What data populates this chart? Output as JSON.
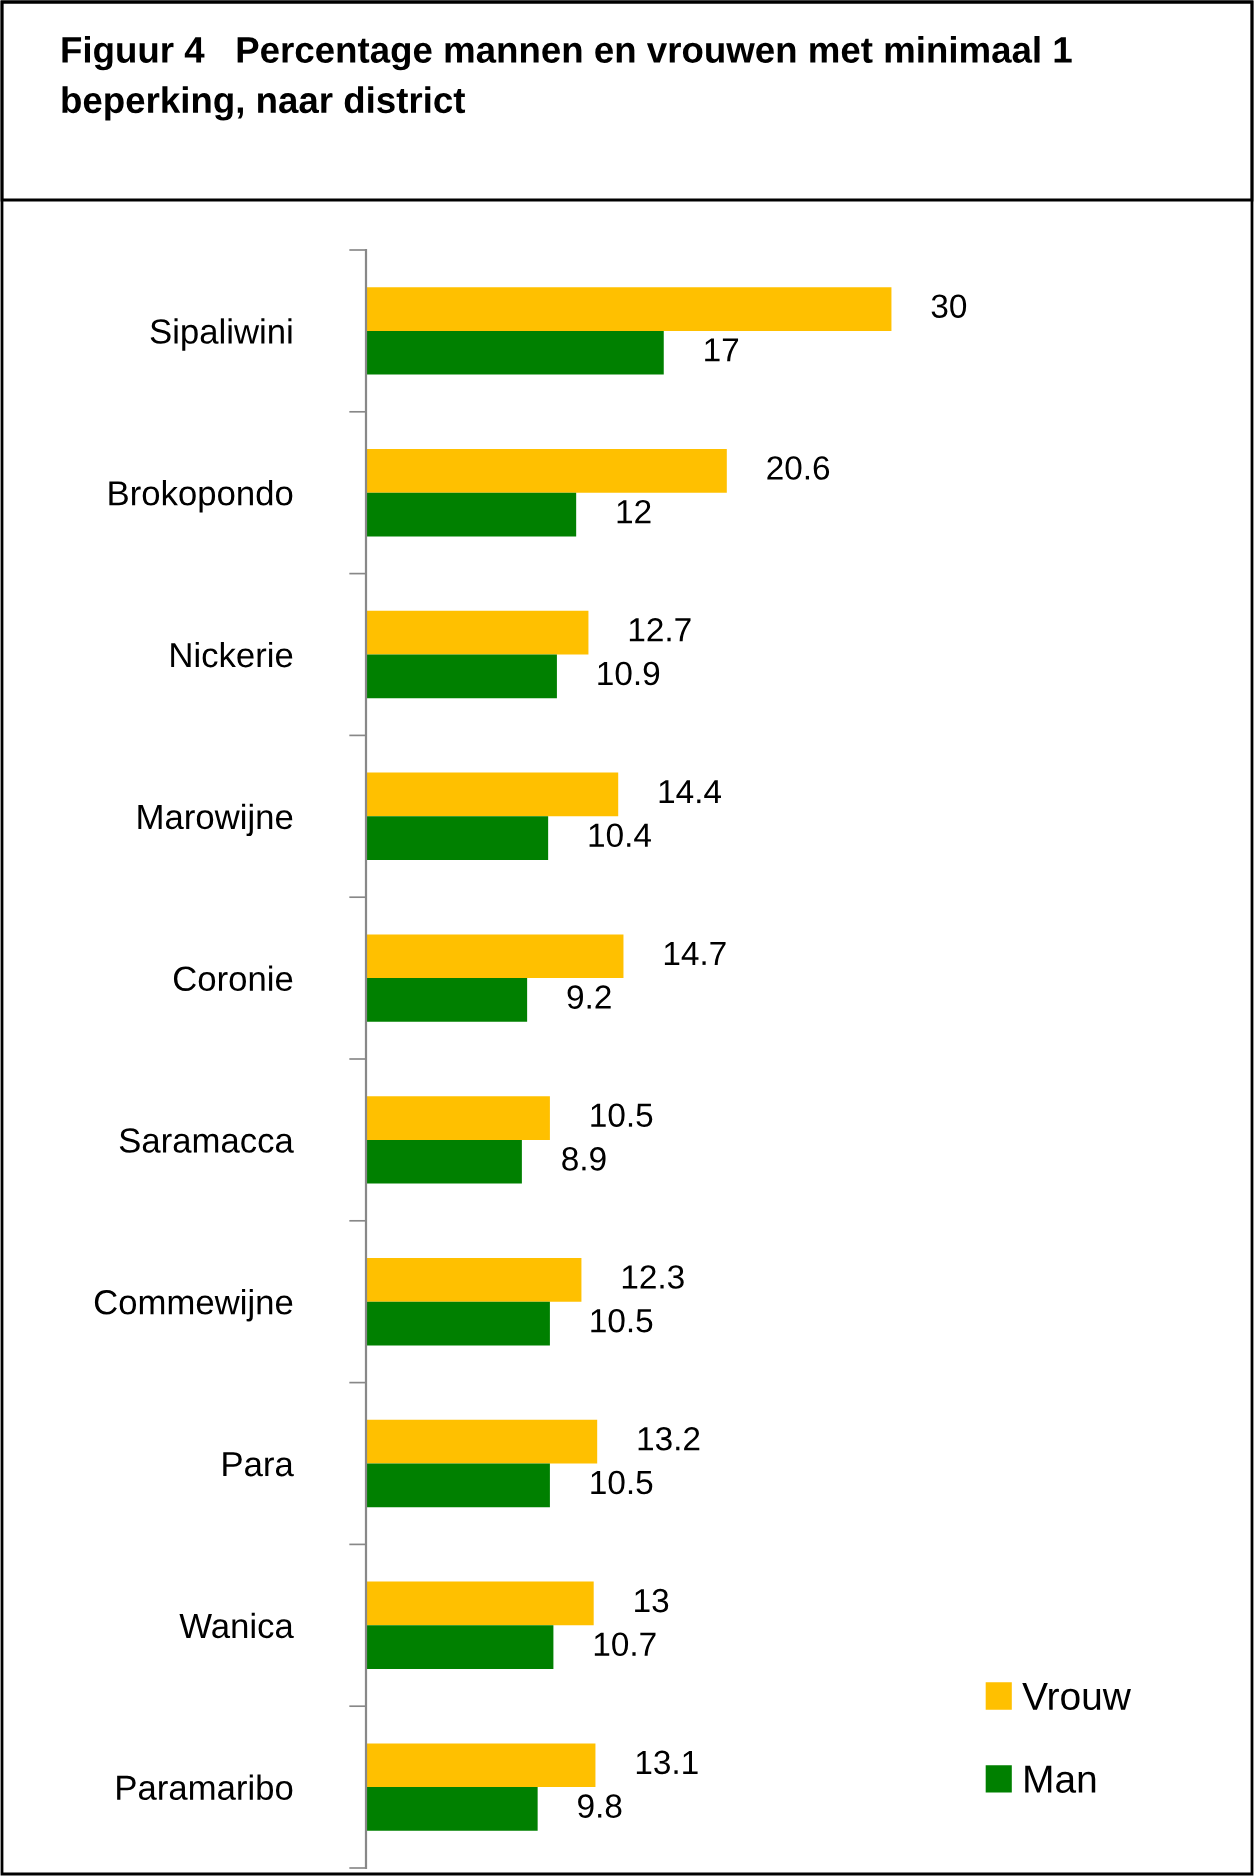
{
  "chart_data": {
    "type": "bar",
    "orientation": "horizontal",
    "title": "Figuur 4   Percentage mannen en vrouwen met minimaal 1 beperking, naar district",
    "categories": [
      "Sipaliwini",
      "Brokopondo",
      "Nickerie",
      "Marowijne",
      "Coronie",
      "Saramacca",
      "Commewijne",
      "Para",
      "Wanica",
      "Paramaribo"
    ],
    "series": [
      {
        "name": "Vrouw",
        "color": "#ffc000",
        "values": [
          30,
          20.6,
          12.7,
          14.4,
          14.7,
          10.5,
          12.3,
          13.2,
          13,
          13.1
        ]
      },
      {
        "name": "Man",
        "color": "#008000",
        "values": [
          17,
          12,
          10.9,
          10.4,
          9.2,
          8.9,
          10.5,
          10.5,
          10.7,
          9.8
        ]
      }
    ],
    "data_labels": true,
    "legend": "bottom right",
    "grid": false
  }
}
